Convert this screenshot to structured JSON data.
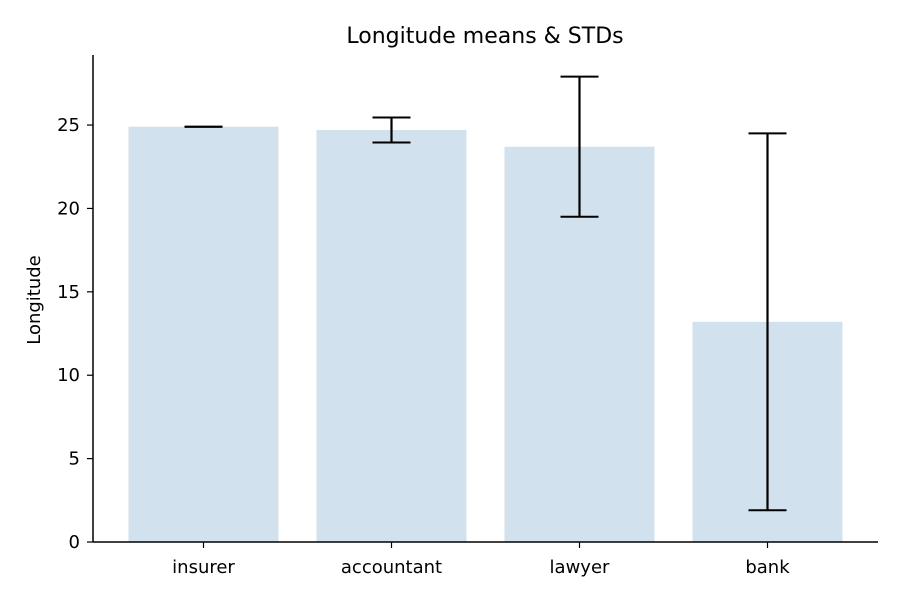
{
  "chart_data": {
    "type": "bar",
    "title": "Longitude means & STDs",
    "xlabel": "",
    "ylabel": "Longitude",
    "categories": [
      "insurer",
      "accountant",
      "lawyer",
      "bank"
    ],
    "values": [
      24.9,
      24.7,
      23.7,
      13.2
    ],
    "errors": [
      0.0,
      0.75,
      4.2,
      11.3
    ],
    "ylim": [
      0,
      29.2
    ],
    "yticks": [
      0,
      5,
      10,
      15,
      20,
      25
    ],
    "bar_color": "#d1e2ee",
    "error_color": "#000000",
    "grid": false,
    "legend": "none"
  }
}
